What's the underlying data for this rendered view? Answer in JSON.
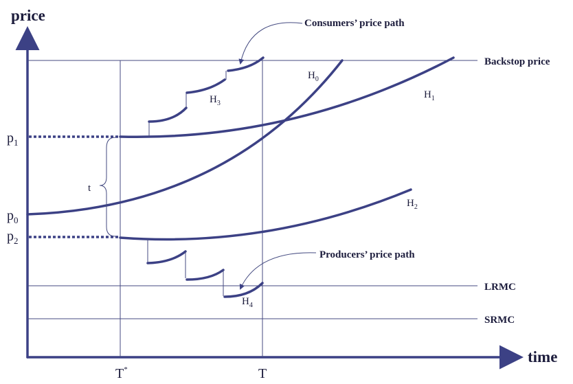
{
  "axes": {
    "y_label": "price",
    "x_label": "time"
  },
  "y_markers": [
    {
      "base": "p",
      "sub": "1"
    },
    {
      "base": "p",
      "sub": "0"
    },
    {
      "base": "p",
      "sub": "2"
    }
  ],
  "x_markers": [
    {
      "base": "T",
      "sup": "*"
    },
    {
      "base": "T"
    }
  ],
  "lines": [
    "Backstop price",
    "LRMC",
    "SRMC"
  ],
  "curves": [
    {
      "base": "H",
      "sub": "0"
    },
    {
      "base": "H",
      "sub": "1"
    },
    {
      "base": "H",
      "sub": "2"
    },
    {
      "base": "H",
      "sub": "3"
    },
    {
      "base": "H",
      "sub": "4"
    }
  ],
  "annotations": {
    "consumers": "Consumers’ price path",
    "producers": "Producers’ price path",
    "tax": "t"
  }
}
